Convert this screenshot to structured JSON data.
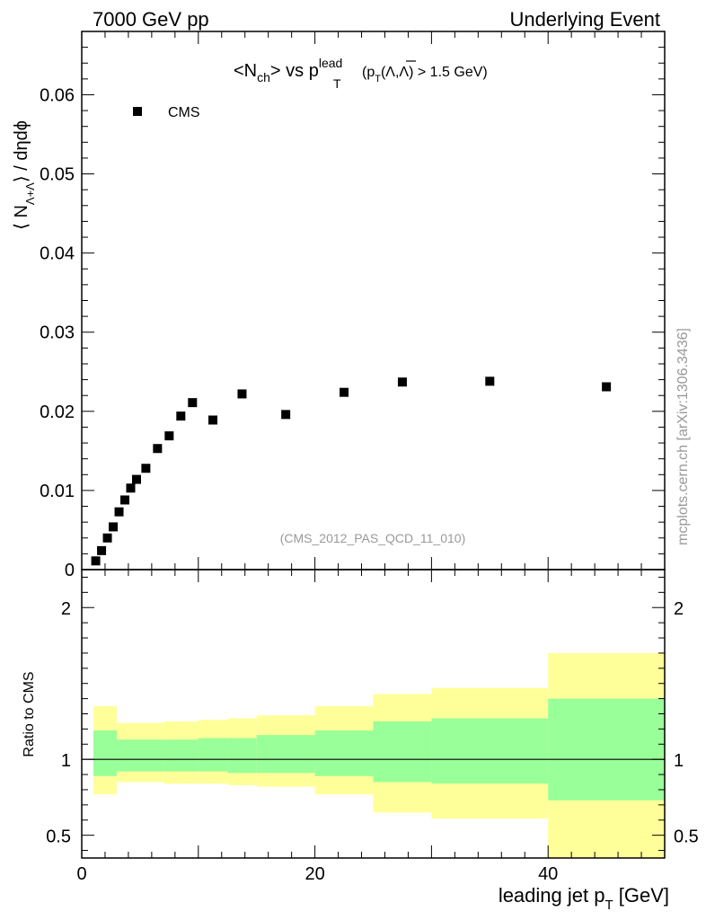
{
  "header": {
    "left": "7000 GeV pp",
    "right": "Underlying Event"
  },
  "watermark": "mcplots.cern.ch [arXiv:1306.3436]",
  "chart_data": [
    {
      "type": "scatter",
      "panel": "main",
      "title": {
        "main": "<N",
        "sub1": "ch",
        "mid": "> vs p",
        "sup": "lead",
        "sub2": "T",
        "tail1": "(p",
        "sub3": "T",
        "tail2": "(Λ,Λ) > 1.5 GeV)"
      },
      "ylabel": {
        "pre": "⟨ N",
        "sub": "Λ+Λ",
        "post": "⟩ / dηdϕ"
      },
      "annotation": "(CMS_2012_PAS_QCD_11_010)",
      "xlim": [
        0,
        50
      ],
      "ylim": [
        0,
        0.068
      ],
      "yticks": [
        0,
        0.01,
        0.02,
        0.03,
        0.04,
        0.05,
        0.06
      ],
      "ytick_labels": [
        "0",
        "0.01",
        "0.02",
        "0.03",
        "0.04",
        "0.05",
        "0.06"
      ],
      "legend": {
        "position": "top-left",
        "entries": [
          "CMS"
        ]
      },
      "series": [
        {
          "name": "CMS",
          "marker": "square",
          "color": "#000000",
          "x": [
            1.2,
            1.7,
            2.2,
            2.7,
            3.2,
            3.7,
            4.2,
            4.7,
            5.5,
            6.5,
            7.5,
            8.5,
            9.5,
            11.25,
            13.75,
            17.5,
            22.5,
            27.5,
            35.0,
            45.0
          ],
          "y": [
            0.0011,
            0.0024,
            0.004,
            0.0054,
            0.0073,
            0.0088,
            0.0103,
            0.0114,
            0.0128,
            0.0153,
            0.0169,
            0.0194,
            0.0211,
            0.0189,
            0.0222,
            0.0196,
            0.0224,
            0.0237,
            0.0238,
            0.0231
          ]
        }
      ]
    },
    {
      "type": "area",
      "panel": "ratio",
      "ylabel": "Ratio to CMS",
      "xlabel": {
        "pre": "leading jet p",
        "sub": "T",
        "post": " [GeV]"
      },
      "xlim": [
        0,
        50
      ],
      "ylim": [
        0.35,
        2.25
      ],
      "xticks": [
        0,
        20,
        40
      ],
      "xtick_labels": [
        "0",
        "20",
        "40"
      ],
      "yticks": [
        0.5,
        1,
        2
      ],
      "ytick_labels": [
        "0.5",
        "1",
        "2"
      ],
      "reference_line": 1,
      "bands": [
        {
          "color": "#ffff99",
          "bins": [
            {
              "x0": 1.0,
              "x1": 3.0,
              "low": 0.77,
              "high": 1.35
            },
            {
              "x0": 3.0,
              "x1": 7.0,
              "low": 0.85,
              "high": 1.24
            },
            {
              "x0": 7.0,
              "x1": 10.0,
              "low": 0.84,
              "high": 1.25
            },
            {
              "x0": 10.0,
              "x1": 12.5,
              "low": 0.84,
              "high": 1.26
            },
            {
              "x0": 12.5,
              "x1": 15.0,
              "low": 0.83,
              "high": 1.27
            },
            {
              "x0": 15.0,
              "x1": 20.0,
              "low": 0.82,
              "high": 1.29
            },
            {
              "x0": 20.0,
              "x1": 25.0,
              "low": 0.77,
              "high": 1.35
            },
            {
              "x0": 25.0,
              "x1": 30.0,
              "low": 0.65,
              "high": 1.43
            },
            {
              "x0": 30.0,
              "x1": 40.0,
              "low": 0.61,
              "high": 1.47
            },
            {
              "x0": 40.0,
              "x1": 50.0,
              "low": 0.35,
              "high": 1.7
            }
          ]
        },
        {
          "color": "#99ff99",
          "bins": [
            {
              "x0": 1.0,
              "x1": 3.0,
              "low": 0.89,
              "high": 1.19
            },
            {
              "x0": 3.0,
              "x1": 7.0,
              "low": 0.92,
              "high": 1.13
            },
            {
              "x0": 7.0,
              "x1": 10.0,
              "low": 0.92,
              "high": 1.13
            },
            {
              "x0": 10.0,
              "x1": 12.5,
              "low": 0.92,
              "high": 1.14
            },
            {
              "x0": 12.5,
              "x1": 15.0,
              "low": 0.91,
              "high": 1.14
            },
            {
              "x0": 15.0,
              "x1": 20.0,
              "low": 0.91,
              "high": 1.16
            },
            {
              "x0": 20.0,
              "x1": 25.0,
              "low": 0.89,
              "high": 1.19
            },
            {
              "x0": 25.0,
              "x1": 30.0,
              "low": 0.85,
              "high": 1.25
            },
            {
              "x0": 30.0,
              "x1": 40.0,
              "low": 0.84,
              "high": 1.27
            },
            {
              "x0": 40.0,
              "x1": 50.0,
              "low": 0.73,
              "high": 1.4
            }
          ]
        }
      ]
    }
  ]
}
